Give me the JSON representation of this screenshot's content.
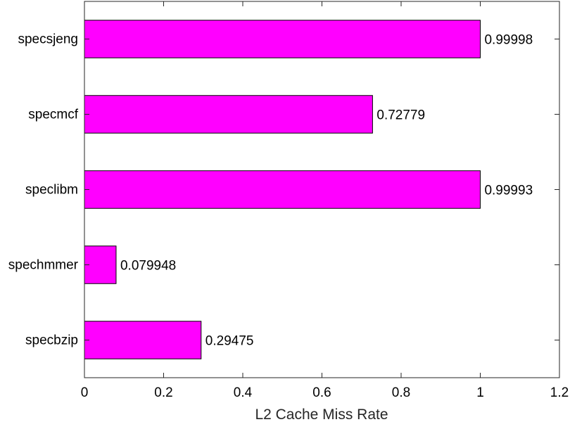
{
  "chart_data": {
    "type": "bar",
    "orientation": "horizontal",
    "categories": [
      "specbzip",
      "spechmmer",
      "speclibm",
      "specmcf",
      "specsjeng"
    ],
    "values": [
      0.29475,
      0.079948,
      0.99993,
      0.72779,
      0.99998
    ],
    "data_labels": [
      "0.29475",
      "0.079948",
      "0.99993",
      "0.72779",
      "0.99998"
    ],
    "xlabel": "L2 Cache Miss Rate",
    "ylabel": "",
    "title": "",
    "xlim": [
      0,
      1.2
    ],
    "xticks": [
      0,
      0.2,
      0.4,
      0.6,
      0.8,
      1,
      1.2
    ],
    "xtick_labels": [
      "0",
      "0.2",
      "0.4",
      "0.6",
      "0.8",
      "1",
      "1.2"
    ],
    "bar_color": "#FF00FF",
    "grid": false,
    "legend": false
  }
}
